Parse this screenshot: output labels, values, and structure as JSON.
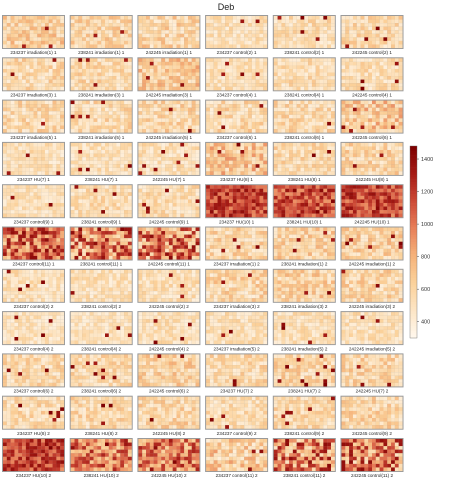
{
  "chart_data": {
    "type": "heatmap",
    "title": "Deb",
    "grid": false,
    "legend_placement": "right",
    "colorbar": {
      "ticks": [
        400,
        600,
        800,
        1000,
        1200,
        1400
      ],
      "range": [
        300,
        1480
      ],
      "colors": [
        "#fff7ec",
        "#fde5c4",
        "#fbd19a",
        "#f5b27a",
        "#e8805a",
        "#cd4a37",
        "#a61c16",
        "#7f0000"
      ]
    },
    "panel_grid": {
      "rows": 11,
      "cols": 6,
      "cells_x": 16,
      "cells_y": 9
    },
    "panels": [
      {
        "label": "234237 irradiation(1) 1",
        "level": 0.28,
        "spread": 0.18,
        "seed": 11
      },
      {
        "label": "238241 irradiation(1) 1",
        "level": 0.25,
        "spread": 0.17,
        "seed": 12
      },
      {
        "label": "242245 irradiation(1) 1",
        "level": 0.25,
        "spread": 0.18,
        "seed": 13
      },
      {
        "label": "234237 control(2) 1",
        "level": 0.18,
        "spread": 0.13,
        "seed": 14
      },
      {
        "label": "238241 control(2) 1",
        "level": 0.2,
        "spread": 0.14,
        "seed": 15
      },
      {
        "label": "242245 control(2) 1",
        "level": 0.22,
        "spread": 0.15,
        "seed": 16
      },
      {
        "label": "234237 irradiation(3) 1",
        "level": 0.22,
        "spread": 0.16,
        "seed": 21
      },
      {
        "label": "238241 irradiation(3) 1",
        "level": 0.22,
        "spread": 0.15,
        "seed": 22
      },
      {
        "label": "242245 irradiation(3) 1",
        "level": 0.3,
        "spread": 0.2,
        "seed": 23
      },
      {
        "label": "234237 control(4) 1",
        "level": 0.18,
        "spread": 0.12,
        "seed": 24
      },
      {
        "label": "238241 control(4) 1",
        "level": 0.2,
        "spread": 0.14,
        "seed": 25
      },
      {
        "label": "242245 control(4) 1",
        "level": 0.2,
        "spread": 0.14,
        "seed": 26
      },
      {
        "label": "234237 irradiation(5) 1",
        "level": 0.22,
        "spread": 0.16,
        "seed": 31
      },
      {
        "label": "238241 irradiation(5) 1",
        "level": 0.22,
        "spread": 0.16,
        "seed": 32
      },
      {
        "label": "242245 irradiation(5) 1",
        "level": 0.24,
        "spread": 0.17,
        "seed": 33
      },
      {
        "label": "234237 control(6) 1",
        "level": 0.22,
        "spread": 0.17,
        "seed": 34
      },
      {
        "label": "238241 control(6) 1",
        "level": 0.22,
        "spread": 0.16,
        "seed": 35
      },
      {
        "label": "242245 control(6) 1",
        "level": 0.3,
        "spread": 0.22,
        "seed": 36
      },
      {
        "label": "234237 HU(7) 1",
        "level": 0.18,
        "spread": 0.13,
        "seed": 41
      },
      {
        "label": "238241 HU(7) 1",
        "level": 0.18,
        "spread": 0.13,
        "seed": 42
      },
      {
        "label": "242245 HU(7) 1",
        "level": 0.18,
        "spread": 0.13,
        "seed": 43
      },
      {
        "label": "234237 HU(8) 1",
        "level": 0.32,
        "spread": 0.22,
        "seed": 44
      },
      {
        "label": "238241 HU(8) 1",
        "level": 0.22,
        "spread": 0.15,
        "seed": 45
      },
      {
        "label": "242245 HU(8) 1",
        "level": 0.24,
        "spread": 0.17,
        "seed": 46
      },
      {
        "label": "234237 control(9) 1",
        "level": 0.18,
        "spread": 0.12,
        "seed": 51
      },
      {
        "label": "238241 control(9) 1",
        "level": 0.2,
        "spread": 0.14,
        "seed": 52
      },
      {
        "label": "242245 control(9) 1",
        "level": 0.2,
        "spread": 0.14,
        "seed": 53
      },
      {
        "label": "234237 HU(10) 1",
        "level": 0.72,
        "spread": 0.2,
        "seed": 54
      },
      {
        "label": "238241 HU(10) 1",
        "level": 0.7,
        "spread": 0.2,
        "seed": 55
      },
      {
        "label": "242245 HU(10) 1",
        "level": 0.72,
        "spread": 0.2,
        "seed": 56
      },
      {
        "label": "234237 control(11) 1",
        "level": 0.6,
        "spread": 0.35,
        "seed": 61
      },
      {
        "label": "238241 control(11) 1",
        "level": 0.55,
        "spread": 0.4,
        "seed": 62
      },
      {
        "label": "242245 control(11) 1",
        "level": 0.55,
        "spread": 0.4,
        "seed": 63
      },
      {
        "label": "234237 irradiation(1) 2",
        "level": 0.24,
        "spread": 0.17,
        "seed": 64
      },
      {
        "label": "238241 irradiation(1) 2",
        "level": 0.26,
        "spread": 0.18,
        "seed": 65
      },
      {
        "label": "242245 irradiation(1) 2",
        "level": 0.26,
        "spread": 0.18,
        "seed": 66
      },
      {
        "label": "234237 control(2) 2",
        "level": 0.18,
        "spread": 0.13,
        "seed": 71
      },
      {
        "label": "238241 control(2) 2",
        "level": 0.18,
        "spread": 0.13,
        "seed": 72
      },
      {
        "label": "242245 control(2) 2",
        "level": 0.18,
        "spread": 0.13,
        "seed": 73
      },
      {
        "label": "234237 irradiation(3) 2",
        "level": 0.24,
        "spread": 0.18,
        "seed": 74
      },
      {
        "label": "238241 irradiation(3) 2",
        "level": 0.26,
        "spread": 0.18,
        "seed": 75
      },
      {
        "label": "242245 irradiation(3) 2",
        "level": 0.24,
        "spread": 0.17,
        "seed": 76
      },
      {
        "label": "234237 control(4) 2",
        "level": 0.16,
        "spread": 0.11,
        "seed": 81
      },
      {
        "label": "238241 control(4) 2",
        "level": 0.16,
        "spread": 0.11,
        "seed": 82
      },
      {
        "label": "242245 control(4) 2",
        "level": 0.18,
        "spread": 0.12,
        "seed": 83
      },
      {
        "label": "234237 irradiation(5) 2",
        "level": 0.18,
        "spread": 0.12,
        "seed": 84
      },
      {
        "label": "238241 irradiation(5) 2",
        "level": 0.18,
        "spread": 0.12,
        "seed": 85
      },
      {
        "label": "242245 irradiation(5) 2",
        "level": 0.18,
        "spread": 0.12,
        "seed": 86
      },
      {
        "label": "234237 control(6) 2",
        "level": 0.22,
        "spread": 0.16,
        "seed": 91
      },
      {
        "label": "238241 control(6) 2",
        "level": 0.22,
        "spread": 0.15,
        "seed": 92
      },
      {
        "label": "242245 control(6) 2",
        "level": 0.26,
        "spread": 0.18,
        "seed": 93
      },
      {
        "label": "234237 HU(7) 2",
        "level": 0.22,
        "spread": 0.16,
        "seed": 94
      },
      {
        "label": "238241 HU(7) 2",
        "level": 0.24,
        "spread": 0.17,
        "seed": 95
      },
      {
        "label": "242245 HU(7) 2",
        "level": 0.24,
        "spread": 0.17,
        "seed": 96
      },
      {
        "label": "234237 HU(8) 2",
        "level": 0.22,
        "spread": 0.16,
        "seed": 101
      },
      {
        "label": "238241 HU(8) 2",
        "level": 0.22,
        "spread": 0.16,
        "seed": 102
      },
      {
        "label": "242245 HU(8) 2",
        "level": 0.24,
        "spread": 0.17,
        "seed": 103
      },
      {
        "label": "234237 control(9) 2",
        "level": 0.2,
        "spread": 0.14,
        "seed": 104
      },
      {
        "label": "238241 control(9) 2",
        "level": 0.22,
        "spread": 0.15,
        "seed": 105
      },
      {
        "label": "242245 control(9) 2",
        "level": 0.24,
        "spread": 0.17,
        "seed": 106
      },
      {
        "label": "234237 HU(10) 2",
        "level": 0.72,
        "spread": 0.2,
        "seed": 111
      },
      {
        "label": "238241 HU(10) 2",
        "level": 0.55,
        "spread": 0.3,
        "seed": 112
      },
      {
        "label": "242245 HU(10) 2",
        "level": 0.55,
        "spread": 0.3,
        "seed": 113
      },
      {
        "label": "234237 control(11) 2",
        "level": 0.28,
        "spread": 0.22,
        "seed": 114
      },
      {
        "label": "238241 control(11) 2",
        "level": 0.55,
        "spread": 0.4,
        "seed": 115
      },
      {
        "label": "242245 control(11) 2",
        "level": 0.55,
        "spread": 0.4,
        "seed": 116
      }
    ]
  }
}
